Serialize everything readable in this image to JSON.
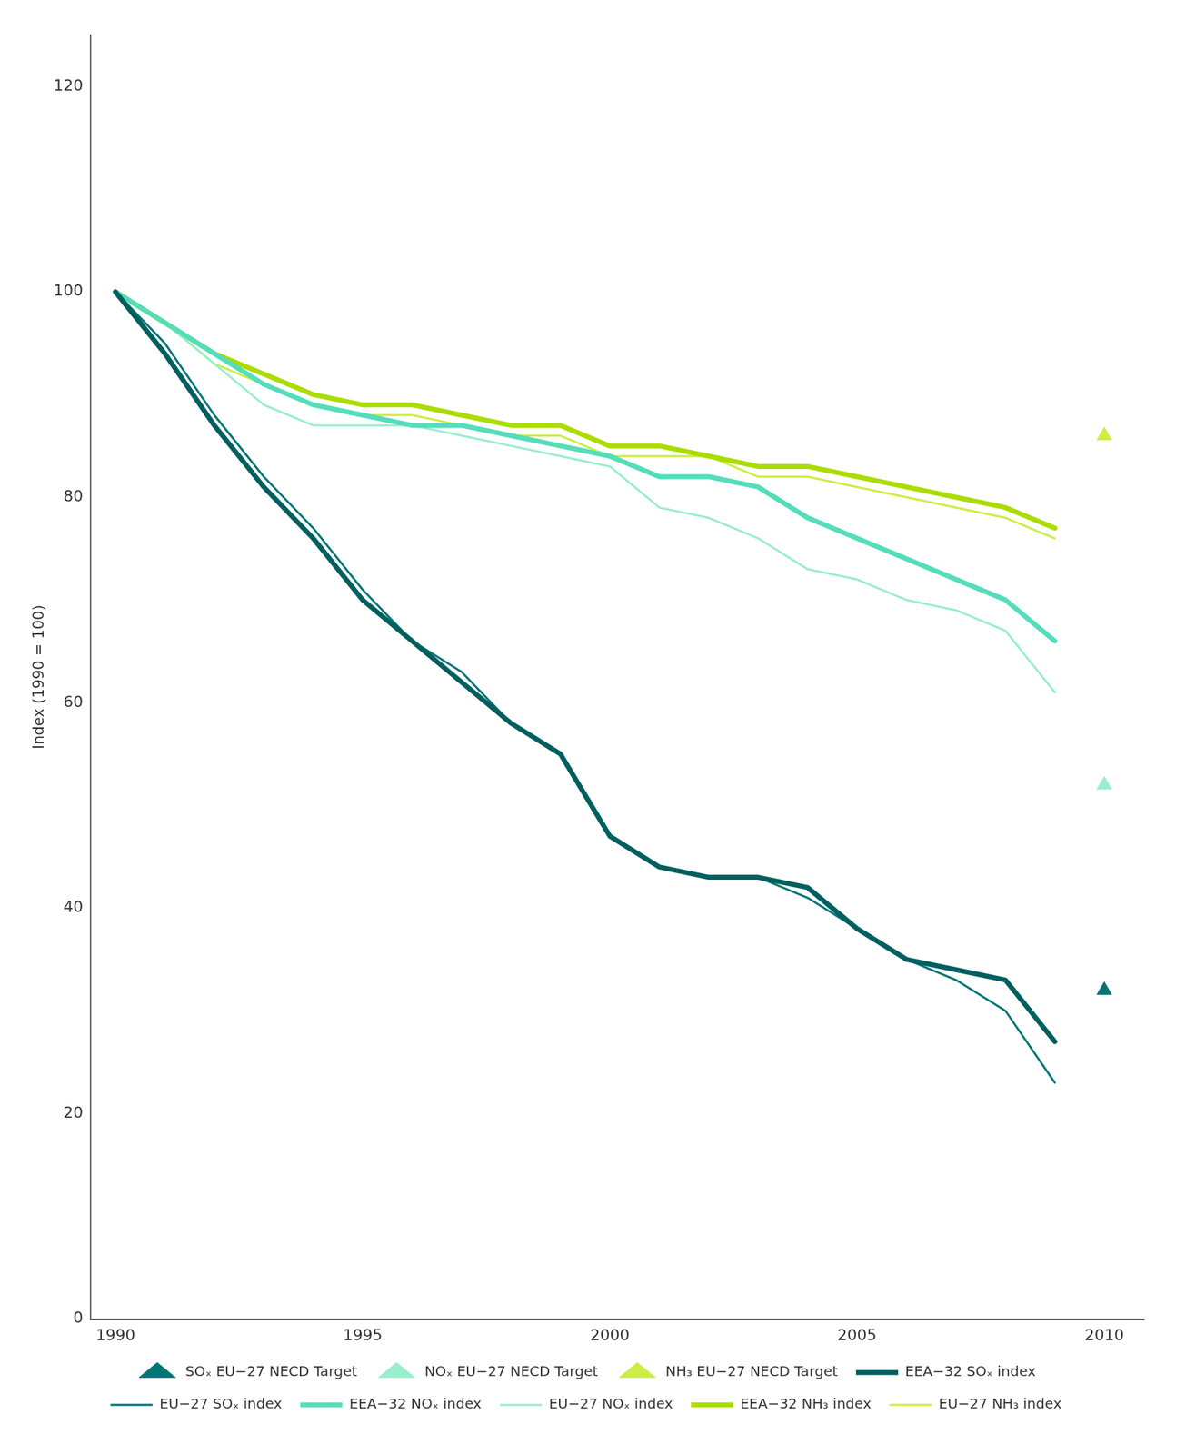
{
  "chart_data": {
    "type": "line",
    "ylabel": "Index (1990 = 100)",
    "x": [
      1990,
      1991,
      1992,
      1993,
      1994,
      1995,
      1996,
      1997,
      1998,
      1999,
      2000,
      2001,
      2002,
      2003,
      2004,
      2005,
      2006,
      2007,
      2008,
      2009
    ],
    "xlim": [
      1989.5,
      2010.8
    ],
    "xticks": [
      1990,
      1995,
      2000,
      2005,
      2010
    ],
    "ylim": [
      0,
      125
    ],
    "yticks": [
      0,
      20,
      40,
      60,
      80,
      100,
      120
    ],
    "grid": false,
    "legend": "bottom",
    "series": [
      {
        "name": "EEA−32 SOₓ index",
        "color": "#005f5f",
        "line_style": "solid",
        "values": [
          100,
          94,
          87,
          81,
          76,
          70,
          66,
          62,
          58,
          55,
          47,
          44,
          43,
          43,
          42,
          38,
          35,
          34,
          33,
          27
        ]
      },
      {
        "name": "EU−27 SOₓ index",
        "color": "#007575",
        "line_style": "solid",
        "values": [
          100,
          95,
          88,
          82,
          77,
          71,
          66,
          63,
          58,
          55,
          47,
          44,
          43,
          43,
          41,
          38,
          35,
          33,
          30,
          23
        ]
      },
      {
        "name": "SOₓ EU−27 NECD Target",
        "color": "#007575",
        "type": "scatter",
        "marker": "triangle",
        "x": [
          2010
        ],
        "values": [
          32
        ]
      },
      {
        "name": "EEA−32 NOₓ index",
        "color": "#55ddbb",
        "line_style": "solid",
        "values": [
          100,
          97,
          94,
          91,
          89,
          88,
          87,
          87,
          86,
          85,
          84,
          82,
          82,
          81,
          78,
          76,
          74,
          72,
          70,
          66
        ]
      },
      {
        "name": "EU−27 NOₓ index",
        "color": "#99eecc",
        "line_style": "solid",
        "values": [
          100,
          97,
          93,
          89,
          87,
          87,
          87,
          86,
          85,
          84,
          83,
          79,
          78,
          76,
          73,
          72,
          70,
          69,
          67,
          61
        ]
      },
      {
        "name": "NOₓ EU−27 NECD Target",
        "color": "#99eecc",
        "type": "scatter",
        "marker": "triangle",
        "x": [
          2010
        ],
        "values": [
          52
        ]
      },
      {
        "name": "EEA−32 NH₃ index",
        "color": "#aadd00",
        "line_style": "solid",
        "values": [
          100,
          97,
          94,
          92,
          90,
          89,
          89,
          88,
          87,
          87,
          85,
          85,
          84,
          83,
          83,
          82,
          81,
          80,
          79,
          77
        ]
      },
      {
        "name": "EU−27 NH₃ index",
        "color": "#ccee44",
        "line_style": "solid",
        "values": [
          100,
          97,
          93,
          91,
          89,
          88,
          88,
          87,
          86,
          86,
          84,
          84,
          84,
          82,
          82,
          81,
          80,
          79,
          78,
          76
        ]
      },
      {
        "name": "NH₃ EU−27 NECD Target",
        "color": "#ccee44",
        "type": "scatter",
        "marker": "triangle",
        "x": [
          2010
        ],
        "values": [
          86
        ]
      }
    ]
  }
}
